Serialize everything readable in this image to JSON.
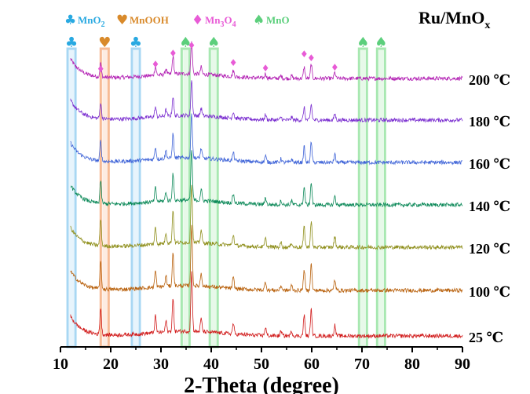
{
  "chart_data": {
    "type": "line",
    "title": "Ru/MnOₓ",
    "title_main": "Ru/MnO",
    "title_sub": "x",
    "xlabel": "2-Theta (degree)",
    "xlim": [
      10,
      90
    ],
    "xticks": [
      10,
      20,
      30,
      40,
      50,
      60,
      70,
      80,
      90
    ],
    "legend": [
      {
        "symbol": "♣",
        "label_main": "MnO",
        "label_sub": "2",
        "color": "#29a9e1",
        "phase": "MnO2"
      },
      {
        "symbol": "♥",
        "label_main": "MnOOH",
        "label_sub": "",
        "color": "#d98a2b",
        "phase": "MnOOH"
      },
      {
        "symbol": "♦",
        "label_main": "Mn",
        "label_sub": "3",
        "label_main2": "O",
        "label_sub2": "4",
        "color": "#e85bd6",
        "phase": "Mn3O4"
      },
      {
        "symbol": "♠",
        "label_main": "MnO",
        "label_sub": "",
        "color": "#5ccf7c",
        "phase": "MnO"
      }
    ],
    "reference_bands": [
      {
        "phase": "MnO2",
        "x": 12.2,
        "color": "#9fd3f2"
      },
      {
        "phase": "MnOOH",
        "x": 18.8,
        "color": "#f6b48a"
      },
      {
        "phase": "MnO2",
        "x": 25.0,
        "color": "#9fd3f2"
      },
      {
        "phase": "MnO",
        "x": 34.9,
        "color": "#9fe6a8"
      },
      {
        "phase": "MnO",
        "x": 40.5,
        "color": "#9fe6a8"
      },
      {
        "phase": "MnO",
        "x": 70.2,
        "color": "#9fe6a8"
      },
      {
        "phase": "MnO",
        "x": 73.8,
        "color": "#9fe6a8"
      }
    ],
    "mn3o4_markers_x": [
      18.0,
      28.9,
      32.4,
      36.1,
      44.4,
      50.8,
      58.5,
      59.9,
      64.6
    ],
    "peaks": [
      {
        "x": 18.0,
        "h": 0.45
      },
      {
        "x": 28.9,
        "h": 0.28
      },
      {
        "x": 31.0,
        "h": 0.18
      },
      {
        "x": 32.4,
        "h": 0.55
      },
      {
        "x": 36.1,
        "h": 1.0
      },
      {
        "x": 38.0,
        "h": 0.22
      },
      {
        "x": 44.4,
        "h": 0.18
      },
      {
        "x": 50.8,
        "h": 0.14
      },
      {
        "x": 53.9,
        "h": 0.08
      },
      {
        "x": 56.0,
        "h": 0.08
      },
      {
        "x": 58.5,
        "h": 0.35
      },
      {
        "x": 59.9,
        "h": 0.45
      },
      {
        "x": 64.6,
        "h": 0.18
      }
    ],
    "series": [
      {
        "name": "200 ℃",
        "color": "#b21fb3",
        "intensity_scale": 0.55
      },
      {
        "name": "180 ℃",
        "color": "#7b2fd0",
        "intensity_scale": 0.6
      },
      {
        "name": "160 ℃",
        "color": "#3f64d8",
        "intensity_scale": 0.75
      },
      {
        "name": "140 ℃",
        "color": "#0e8a5a",
        "intensity_scale": 0.85
      },
      {
        "name": "120 ℃",
        "color": "#8f8f1c",
        "intensity_scale": 1.0
      },
      {
        "name": "100 ℃",
        "color": "#b8600b",
        "intensity_scale": 1.0
      },
      {
        "name": "25 ℃",
        "color": "#d11a1a",
        "intensity_scale": 1.0
      }
    ]
  }
}
